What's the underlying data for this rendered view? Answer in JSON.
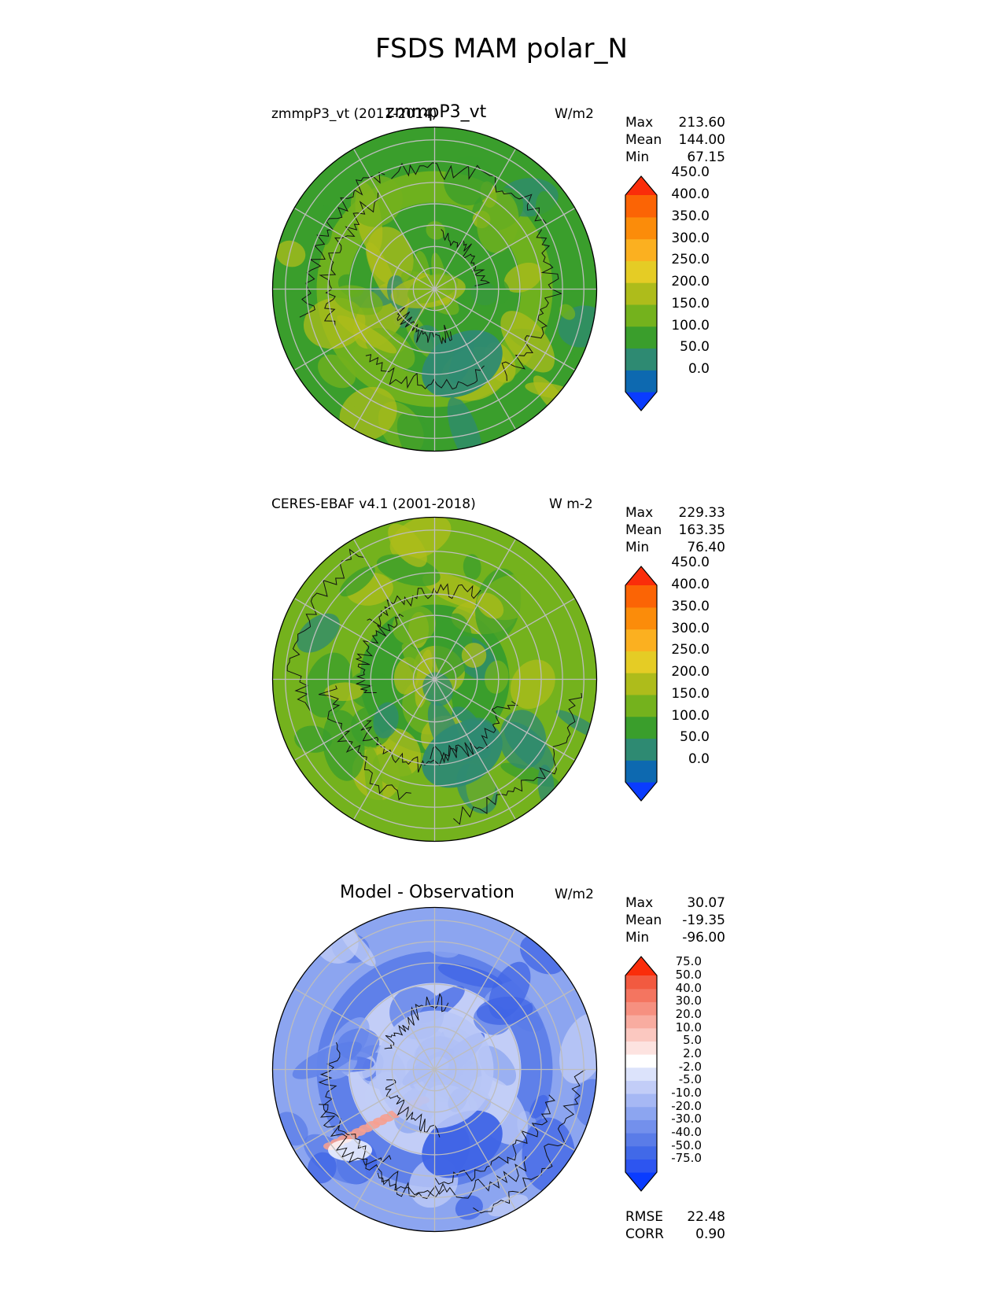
{
  "title": "FSDS MAM polar_N",
  "chart_data": [
    {
      "type": "heatmap",
      "projection": "north-polar-stereographic",
      "title_left": "zmmpP3_vt (2011-2014)",
      "title_center": "zmmpP3_vt",
      "units": "W/m2",
      "stats": [
        {
          "label": "Max",
          "value": "213.60"
        },
        {
          "label": "Mean",
          "value": "144.00"
        },
        {
          "label": "Min",
          "value": "67.15"
        }
      ],
      "colorbar": {
        "levels": [
          0,
          50,
          100,
          150,
          200,
          250,
          300,
          350,
          400,
          450
        ],
        "tick_labels": [
          "0.0",
          "50.0",
          "100.0",
          "150.0",
          "200.0",
          "250.0",
          "300.0",
          "350.0",
          "400.0",
          "450.0"
        ],
        "colors": [
          "#0a3cff",
          "#0d69b0",
          "#2e8a72",
          "#3a9e2c",
          "#74b21d",
          "#aebc1b",
          "#e5cc25",
          "#fbb020",
          "#fb8c0a",
          "#fb6405",
          "#fa2d0a"
        ],
        "extend": "both"
      },
      "field": {
        "base": "#3a9e2c",
        "alt": "#74b21d",
        "high": "#aebc1b",
        "low": "#2e8a72"
      }
    },
    {
      "type": "heatmap",
      "projection": "north-polar-stereographic",
      "title_left": "CERES-EBAF v4.1 (2001-2018)",
      "title_center": "",
      "units": "W m-2",
      "stats": [
        {
          "label": "Max",
          "value": "229.33"
        },
        {
          "label": "Mean",
          "value": "163.35"
        },
        {
          "label": "Min",
          "value": "76.40"
        }
      ],
      "colorbar": {
        "levels": [
          0,
          50,
          100,
          150,
          200,
          250,
          300,
          350,
          400,
          450
        ],
        "tick_labels": [
          "0.0",
          "50.0",
          "100.0",
          "150.0",
          "200.0",
          "250.0",
          "300.0",
          "350.0",
          "400.0",
          "450.0"
        ],
        "colors": [
          "#0a3cff",
          "#0d69b0",
          "#2e8a72",
          "#3a9e2c",
          "#74b21d",
          "#aebc1b",
          "#e5cc25",
          "#fbb020",
          "#fb8c0a",
          "#fb6405",
          "#fa2d0a"
        ],
        "extend": "both"
      },
      "field": {
        "base": "#74b21d",
        "alt": "#3a9e2c",
        "high": "#aebc1b",
        "low": "#2e8a72"
      }
    },
    {
      "type": "heatmap",
      "projection": "north-polar-stereographic",
      "title_left": "",
      "title_center": "Model - Observation",
      "units": "W/m2",
      "stats": [
        {
          "label": "Max",
          "value": "30.07"
        },
        {
          "label": "Mean",
          "value": "-19.35"
        },
        {
          "label": "Min",
          "value": "-96.00"
        }
      ],
      "colorbar": {
        "levels": [
          -75,
          -50,
          -40,
          -30,
          -20,
          -10,
          -5,
          -2,
          2,
          5,
          10,
          20,
          30,
          40,
          50,
          75
        ],
        "tick_labels": [
          "-75.0",
          "-50.0",
          "-40.0",
          "-30.0",
          "-20.0",
          "-10.0",
          "-5.0",
          "-2.0",
          "2.0",
          "5.0",
          "10.0",
          "20.0",
          "30.0",
          "40.0",
          "50.0",
          "75.0"
        ],
        "colors": [
          "#0a3cff",
          "#2d55f0",
          "#4169e8",
          "#5a7ce8",
          "#7390ec",
          "#8ca5f0",
          "#a6b8f4",
          "#c2cdf7",
          "#dce3fb",
          "#ffffff",
          "#fde3e0",
          "#fbc8c0",
          "#f8aca0",
          "#f69080",
          "#f47560",
          "#f25a40",
          "#fa2d0a"
        ],
        "extend": "both"
      },
      "field": {
        "base": "#8ca5f0",
        "alt": "#5a7ce8",
        "high": "#c2cdf7",
        "low": "#3f64e6",
        "pos": "#f6a090"
      },
      "metrics": [
        {
          "label": "RMSE",
          "value": "22.48"
        },
        {
          "label": "CORR",
          "value": "0.90"
        }
      ]
    }
  ]
}
